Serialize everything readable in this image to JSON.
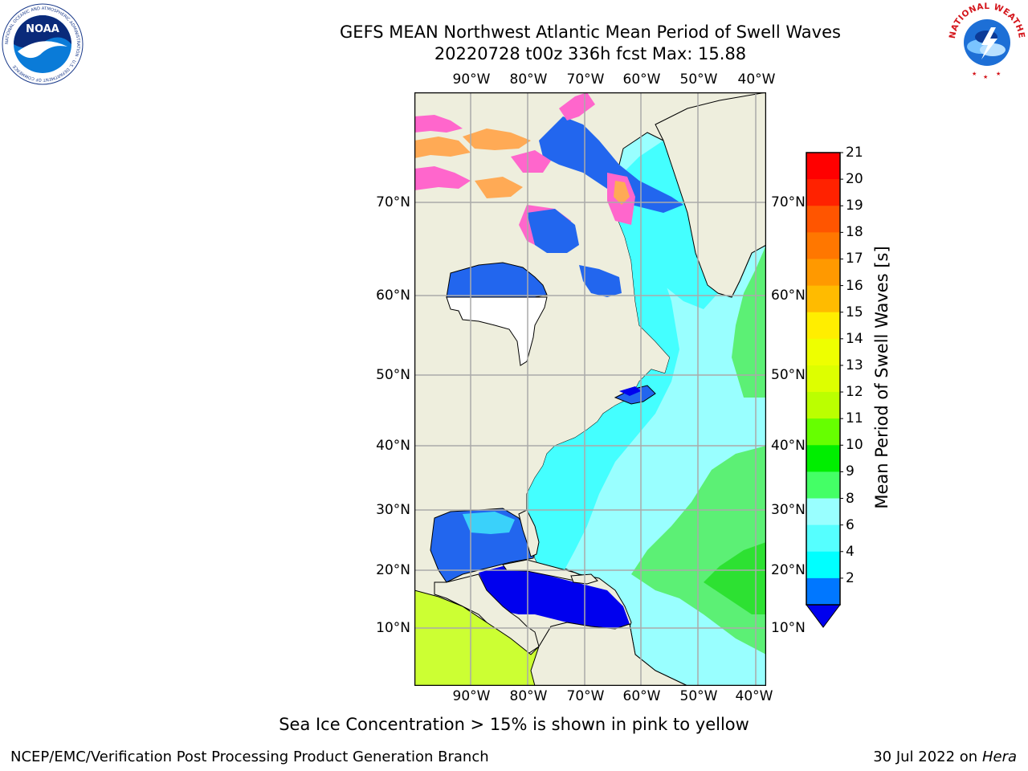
{
  "header": {
    "title": "GEFS MEAN Northwest Atlantic Mean Period of Swell Waves",
    "subtitle": "20220728 t00z 336h fcst   Max: 15.88"
  },
  "map": {
    "lon_labels": [
      "90°W",
      "80°W",
      "70°W",
      "60°W",
      "50°W",
      "40°W"
    ],
    "lat_labels": [
      "70°N",
      "60°N",
      "50°N",
      "40°N",
      "30°N",
      "20°N",
      "10°N"
    ],
    "ocean_palette": {
      "deep_blue": "#0000ee",
      "blue": "#2266ee",
      "cyan": "#44ffff",
      "light_cyan": "#99ffff",
      "green": "#55ee66",
      "yellow_green": "#ccff33",
      "ice_pink": "#ff66cc",
      "ice_orange": "#ffaa55",
      "land": "#eeeedd"
    }
  },
  "colorbar": {
    "title": "Mean Period of Swell Waves [s]",
    "labels": [
      "21",
      "20",
      "19",
      "18",
      "17",
      "16",
      "15",
      "14",
      "13",
      "12",
      "11",
      "10",
      "9",
      "8",
      "6",
      "4",
      "2"
    ],
    "colors": [
      "#ff0000",
      "#ff2200",
      "#ff5500",
      "#ff7700",
      "#ff9900",
      "#ffbb00",
      "#ffee00",
      "#eeff00",
      "#ddff00",
      "#bbff00",
      "#66ff00",
      "#00ee00",
      "#44ff66",
      "#99ffff",
      "#55ffff",
      "#00ffff",
      "#0077ff"
    ],
    "under_color": "#0000ee"
  },
  "logos": {
    "noaa_text": "NOAA",
    "noaa_ring_text": "NATIONAL OCEANIC AND ATMOSPHERIC ADMINISTRATION · U.S. DEPARTMENT OF COMMERCE",
    "nws_ring_text": "NATIONAL WEATHER SERVICE"
  },
  "caption": "Sea Ice Concentration > 15% is shown in pink to yellow",
  "footer": {
    "left": "NCEP/EMC/Verification Post Processing Product Generation Branch",
    "right_date": "30 Jul 2022 on ",
    "right_host": "Hera"
  }
}
